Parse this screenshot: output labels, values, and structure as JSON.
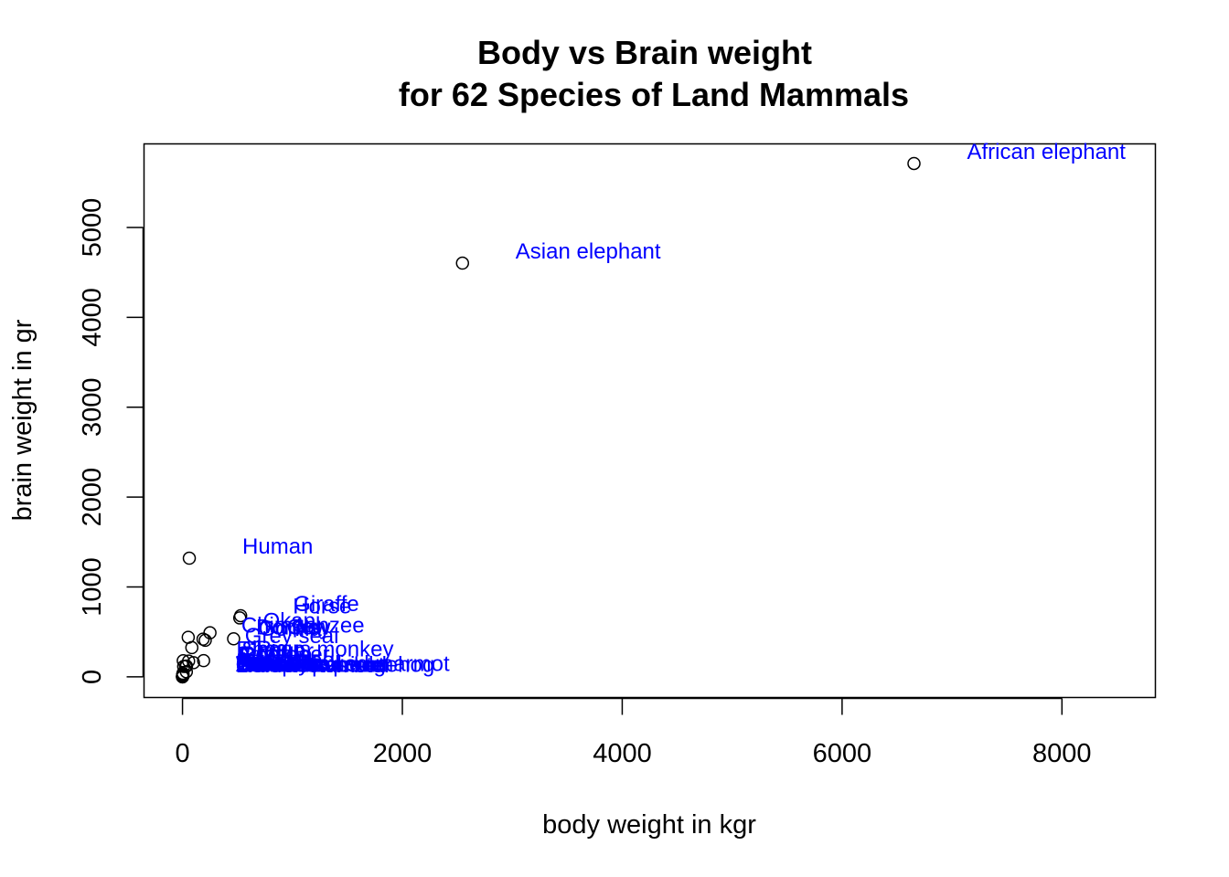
{
  "chart_data": {
    "type": "scatter",
    "title": "Body vs Brain weight",
    "subtitle": "for 62 Species of Land Mammals",
    "xlabel": "body weight in kgr",
    "ylabel": "brain weight in gr",
    "xlim": [
      -350,
      8850
    ],
    "ylim": [
      -230,
      5930
    ],
    "xticks": [
      "0",
      "2000",
      "4000",
      "6000",
      "8000"
    ],
    "yticks": [
      "0",
      "1000",
      "2000",
      "3000",
      "4000",
      "5000"
    ],
    "grid": false,
    "legend": "none",
    "point_color": "#000000",
    "label_color": "#0000ff",
    "x": [
      6654,
      2547,
      62,
      529,
      521,
      207,
      250,
      187,
      192,
      465,
      100,
      85,
      36.3,
      52.2,
      55.5,
      35,
      10.6,
      27.7,
      6.8,
      4.2,
      3.5,
      3.3,
      3.0,
      2.0,
      1.4,
      1.0,
      0.9,
      0.75,
      0.5,
      0.3,
      0.2,
      0.1,
      0.05,
      0.01
    ],
    "y": [
      5712,
      4603,
      1320,
      680,
      655,
      406,
      490,
      419,
      180,
      423,
      157,
      325,
      119.5,
      440,
      175,
      56,
      115,
      115,
      179,
      39.2,
      10.8,
      25.6,
      25,
      12.3,
      12.5,
      17.5,
      2.6,
      12.1,
      4,
      1.9,
      5,
      0.25,
      0.14,
      0.05
    ],
    "labels": [
      {
        "text": "African elephant",
        "x": 6654,
        "y": 5712
      },
      {
        "text": "Asian elephant",
        "x": 2547,
        "y": 4603
      },
      {
        "text": "Human",
        "x": 62,
        "y": 1320
      },
      {
        "text": "Giraffe",
        "x": 529,
        "y": 680
      },
      {
        "text": "Horse",
        "x": 521,
        "y": 655
      },
      {
        "text": "Okapi",
        "x": 250,
        "y": 490
      },
      {
        "text": "Cow",
        "x": 465,
        "y": 423
      },
      {
        "text": "Chimpanzee",
        "x": 52.2,
        "y": 440
      },
      {
        "text": "Gorilla",
        "x": 207,
        "y": 406
      },
      {
        "text": "Donkey",
        "x": 187,
        "y": 419
      },
      {
        "text": "Grey seal",
        "x": 85,
        "y": 325
      },
      {
        "text": "Rhesus monkey",
        "x": 6.8,
        "y": 179
      },
      {
        "text": "Pig",
        "x": 192,
        "y": 180
      },
      {
        "text": "Jaguar",
        "x": 100,
        "y": 157
      },
      {
        "text": "Sheep",
        "x": 55.5,
        "y": 175
      },
      {
        "text": "Roe deer",
        "x": 36.3,
        "y": 119.5
      },
      {
        "text": "Kangaroo",
        "x": 35,
        "y": 56
      },
      {
        "text": "Baboon",
        "x": 10.6,
        "y": 115
      },
      {
        "text": "Goat",
        "x": 27.7,
        "y": 115
      },
      {
        "text": "Red fox",
        "x": 4.2,
        "y": 39.2
      },
      {
        "text": "Cat",
        "x": 3.3,
        "y": 25.6
      },
      {
        "text": "Raccoon",
        "x": 3.0,
        "y": 25
      },
      {
        "text": "Rabbit",
        "x": 2.0,
        "y": 12.3
      },
      {
        "text": "Genet",
        "x": 1.4,
        "y": 12.5
      },
      {
        "text": "Arctic fox",
        "x": 3.5,
        "y": 10.8
      },
      {
        "text": "Tree hyrax",
        "x": 2.0,
        "y": 12.3
      },
      {
        "text": "Yellow-bellied marmot",
        "x": 1.4,
        "y": 12.5
      },
      {
        "text": "Slow loris",
        "x": 1.4,
        "y": 12.5
      },
      {
        "text": "Water opossum",
        "x": 3.5,
        "y": 3.9
      },
      {
        "text": "European hedgehog",
        "x": 0.785,
        "y": 3.5
      },
      {
        "text": "Ground squirrel",
        "x": 0.101,
        "y": 4
      },
      {
        "text": "Mole rat",
        "x": 0.122,
        "y": 3
      },
      {
        "text": "Golden hamster",
        "x": 0.12,
        "y": 1
      },
      {
        "text": "Little brown bat",
        "x": 0.01,
        "y": 0.25
      }
    ]
  }
}
